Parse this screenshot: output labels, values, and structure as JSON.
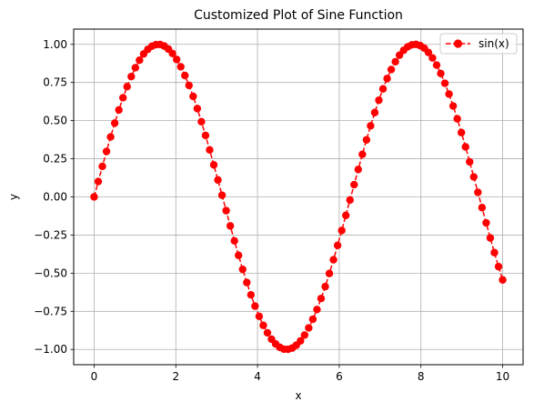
{
  "chart_data": {
    "type": "line",
    "title": "Customized Plot of Sine Function",
    "xlabel": "x",
    "ylabel": "y",
    "xlim": [
      -0.5,
      10.5
    ],
    "ylim": [
      -1.1,
      1.1
    ],
    "x_ticks": [
      0,
      2,
      4,
      6,
      8,
      10
    ],
    "x_tick_labels": [
      "0",
      "2",
      "4",
      "6",
      "8",
      "10"
    ],
    "y_ticks": [
      -1.0,
      -0.75,
      -0.5,
      -0.25,
      0.0,
      0.25,
      0.5,
      0.75,
      1.0
    ],
    "y_tick_labels": [
      "−1.00",
      "−0.75",
      "−0.50",
      "−0.25",
      "0.00",
      "0.25",
      "0.50",
      "0.75",
      "1.00"
    ],
    "grid": true,
    "legend": {
      "position": "top-right"
    },
    "series": [
      {
        "name": "sin(x)",
        "color": "#ff0000",
        "line_style": "dashed",
        "marker": "circle",
        "x": [
          0.0,
          0.101,
          0.202,
          0.303,
          0.404,
          0.505,
          0.606,
          0.707,
          0.808,
          0.909,
          1.01,
          1.111,
          1.212,
          1.313,
          1.414,
          1.515,
          1.616,
          1.717,
          1.818,
          1.919,
          2.02,
          2.121,
          2.222,
          2.323,
          2.424,
          2.525,
          2.626,
          2.727,
          2.828,
          2.929,
          3.03,
          3.131,
          3.232,
          3.333,
          3.434,
          3.535,
          3.636,
          3.737,
          3.838,
          3.939,
          4.04,
          4.141,
          4.242,
          4.343,
          4.444,
          4.545,
          4.646,
          4.747,
          4.848,
          4.949,
          5.051,
          5.152,
          5.253,
          5.354,
          5.455,
          5.556,
          5.657,
          5.758,
          5.859,
          5.96,
          6.061,
          6.162,
          6.263,
          6.364,
          6.465,
          6.566,
          6.667,
          6.768,
          6.869,
          6.97,
          7.071,
          7.172,
          7.273,
          7.374,
          7.475,
          7.576,
          7.677,
          7.778,
          7.879,
          7.98,
          8.081,
          8.182,
          8.283,
          8.384,
          8.485,
          8.586,
          8.687,
          8.788,
          8.889,
          8.99,
          9.091,
          9.192,
          9.293,
          9.394,
          9.495,
          9.596,
          9.697,
          9.798,
          9.899,
          10.0
        ],
        "y": [
          0.0,
          0.101,
          0.2,
          0.298,
          0.393,
          0.484,
          0.57,
          0.65,
          0.723,
          0.789,
          0.847,
          0.896,
          0.937,
          0.967,
          0.988,
          0.998,
          0.999,
          0.989,
          0.969,
          0.94,
          0.901,
          0.853,
          0.796,
          0.731,
          0.659,
          0.579,
          0.493,
          0.403,
          0.308,
          0.21,
          0.111,
          0.011,
          -0.09,
          -0.19,
          -0.288,
          -0.383,
          -0.475,
          -0.561,
          -0.642,
          -0.716,
          -0.783,
          -0.842,
          -0.891,
          -0.933,
          -0.964,
          -0.986,
          -0.998,
          -0.999,
          -0.991,
          -0.972,
          -0.944,
          -0.906,
          -0.859,
          -0.802,
          -0.738,
          -0.666,
          -0.588,
          -0.502,
          -0.412,
          -0.318,
          -0.22,
          -0.121,
          -0.02,
          0.08,
          0.18,
          0.279,
          0.374,
          0.466,
          0.553,
          0.634,
          0.708,
          0.776,
          0.835,
          0.886,
          0.929,
          0.961,
          0.984,
          0.997,
          1.0,
          0.992,
          0.975,
          0.947,
          0.911,
          0.864,
          0.809,
          0.745,
          0.674,
          0.596,
          0.512,
          0.422,
          0.328,
          0.23,
          0.131,
          0.03,
          -0.07,
          -0.17,
          -0.269,
          -0.365,
          -0.457,
          -0.544
        ]
      }
    ]
  }
}
